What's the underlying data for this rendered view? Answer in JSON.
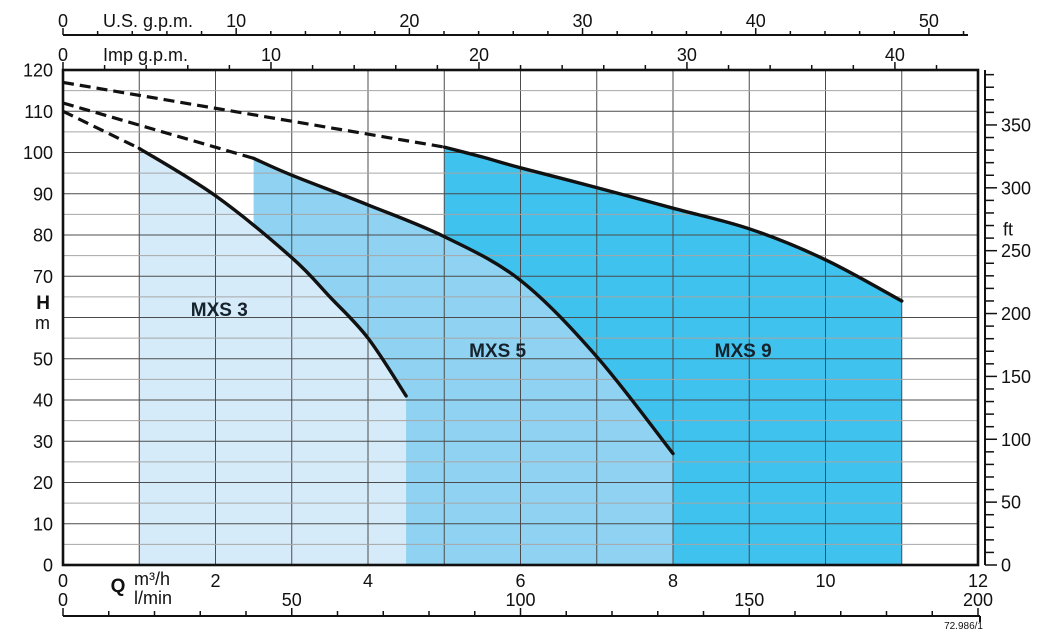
{
  "chart_data": {
    "type": "area",
    "title": "",
    "description": "Pump performance range chart: head H versus flow Q for three pump models",
    "stamp": "72.986/1",
    "x_axis": {
      "label": "Q",
      "unit_primary": "m³/h",
      "unit_secondary": "l/min",
      "range_m3h": [
        0,
        12
      ],
      "ticks_m3h": [
        0,
        2,
        4,
        6,
        8,
        10,
        12
      ],
      "grid_step_m3h": 1,
      "ticks_lmin": [
        0,
        50,
        100,
        150,
        200
      ],
      "minor_step_lmin": 10,
      "lmin_per_m3h": 16.6667
    },
    "x_axis_top": [
      {
        "unit": "U.S. g.p.m.",
        "ticks": [
          0,
          10,
          20,
          30,
          40,
          50
        ],
        "minor_step": 2,
        "m3h_per_unit": 0.22712
      },
      {
        "unit": "Imp g.p.m.",
        "ticks": [
          0,
          10,
          20,
          30,
          40
        ],
        "minor_step": 2,
        "m3h_per_unit": 0.27276
      }
    ],
    "y_axis": {
      "label": "H",
      "unit": "m",
      "range_m": [
        0,
        120
      ],
      "ticks_m": [
        120,
        110,
        100,
        90,
        80,
        70,
        50,
        40,
        30,
        20,
        10,
        0
      ],
      "grid_major_step_m": 10,
      "grid_minor_step_m": 5
    },
    "y_axis_right": {
      "unit": "ft",
      "ticks": [
        0,
        50,
        100,
        150,
        200,
        250,
        300,
        350
      ],
      "minor_step": 10,
      "m_per_unit": 0.3048,
      "max_tick": 390
    },
    "series": [
      {
        "name": "MXS 3",
        "fill": "#d6ebf9",
        "q_min": 1.0,
        "q_max": 4.5,
        "curve_q_h": [
          [
            1.0,
            101
          ],
          [
            2.0,
            89.5
          ],
          [
            3.0,
            74.5
          ],
          [
            3.5,
            65
          ],
          [
            4.0,
            55
          ],
          [
            4.5,
            41
          ]
        ],
        "dashed_q_h": [
          [
            0,
            110
          ],
          [
            1.0,
            101
          ]
        ],
        "label_q": 2.05,
        "label_h": 62
      },
      {
        "name": "MXS 5",
        "fill": "#8fd2f2",
        "q_min": 2.5,
        "q_max": 8.0,
        "curve_q_h": [
          [
            2.5,
            98.6
          ],
          [
            3.0,
            94.5
          ],
          [
            4.0,
            87.3
          ],
          [
            5.0,
            79.6
          ],
          [
            6.0,
            69
          ],
          [
            7.0,
            50.5
          ],
          [
            8.0,
            27
          ]
        ],
        "dashed_q_h": [
          [
            0,
            112
          ],
          [
            2.5,
            98.6
          ]
        ],
        "label_q": 5.7,
        "label_h": 52
      },
      {
        "name": "MXS 9",
        "fill": "#3fc2ed",
        "q_min": 5.0,
        "q_max": 11.0,
        "curve_q_h": [
          [
            5.0,
            101.3
          ],
          [
            5.5,
            98.9
          ],
          [
            6.0,
            96.3
          ],
          [
            7.0,
            91.5
          ],
          [
            8.0,
            86.5
          ],
          [
            9.0,
            81.5
          ],
          [
            10.0,
            74
          ],
          [
            11.0,
            64
          ]
        ],
        "dashed_q_h": [
          [
            0,
            117
          ],
          [
            5.0,
            101.3
          ]
        ],
        "label_q": 8.92,
        "label_h": 52
      }
    ],
    "colors": {
      "curve": "#111111",
      "grid_major": "#4c4c4c",
      "grid_minor": "#a6a6a6",
      "text": "#111111",
      "series_label_text": "#16232d",
      "background": "#ffffff"
    }
  }
}
